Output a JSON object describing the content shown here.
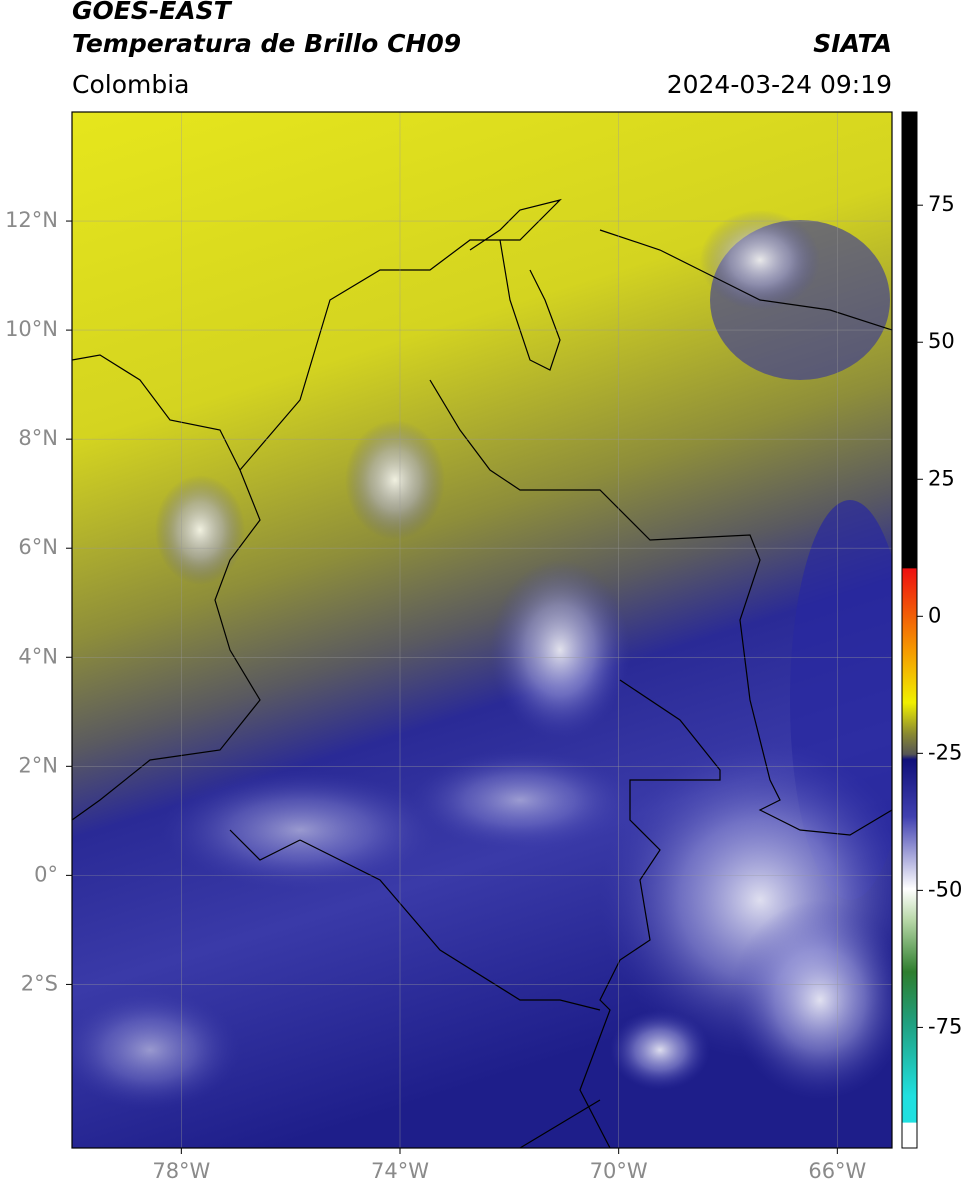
{
  "header": {
    "title": "GOES-EAST",
    "subtitle": "Temperatura de Brillo CH09",
    "source": "SIATA",
    "region": "Colombia",
    "datetime": "2024-03-24 09:19"
  },
  "map": {
    "xlim": [
      -80,
      -65
    ],
    "ylim": [
      -5,
      14
    ],
    "xticks": [
      {
        "value": -78,
        "label": "78°W"
      },
      {
        "value": -74,
        "label": "74°W"
      },
      {
        "value": -70,
        "label": "70°W"
      },
      {
        "value": -66,
        "label": "66°W"
      }
    ],
    "yticks": [
      {
        "value": 12,
        "label": "12°N"
      },
      {
        "value": 10,
        "label": "10°N"
      },
      {
        "value": 8,
        "label": "8°N"
      },
      {
        "value": 6,
        "label": "6°N"
      },
      {
        "value": 4,
        "label": "4°N"
      },
      {
        "value": 2,
        "label": "2°N"
      },
      {
        "value": 0,
        "label": "0°"
      },
      {
        "value": -2,
        "label": "2°S"
      }
    ],
    "grid": true
  },
  "colorbar": {
    "lim": [
      -97,
      92
    ],
    "ticks": [
      75,
      50,
      25,
      0,
      -25,
      -50,
      -75
    ]
  }
}
